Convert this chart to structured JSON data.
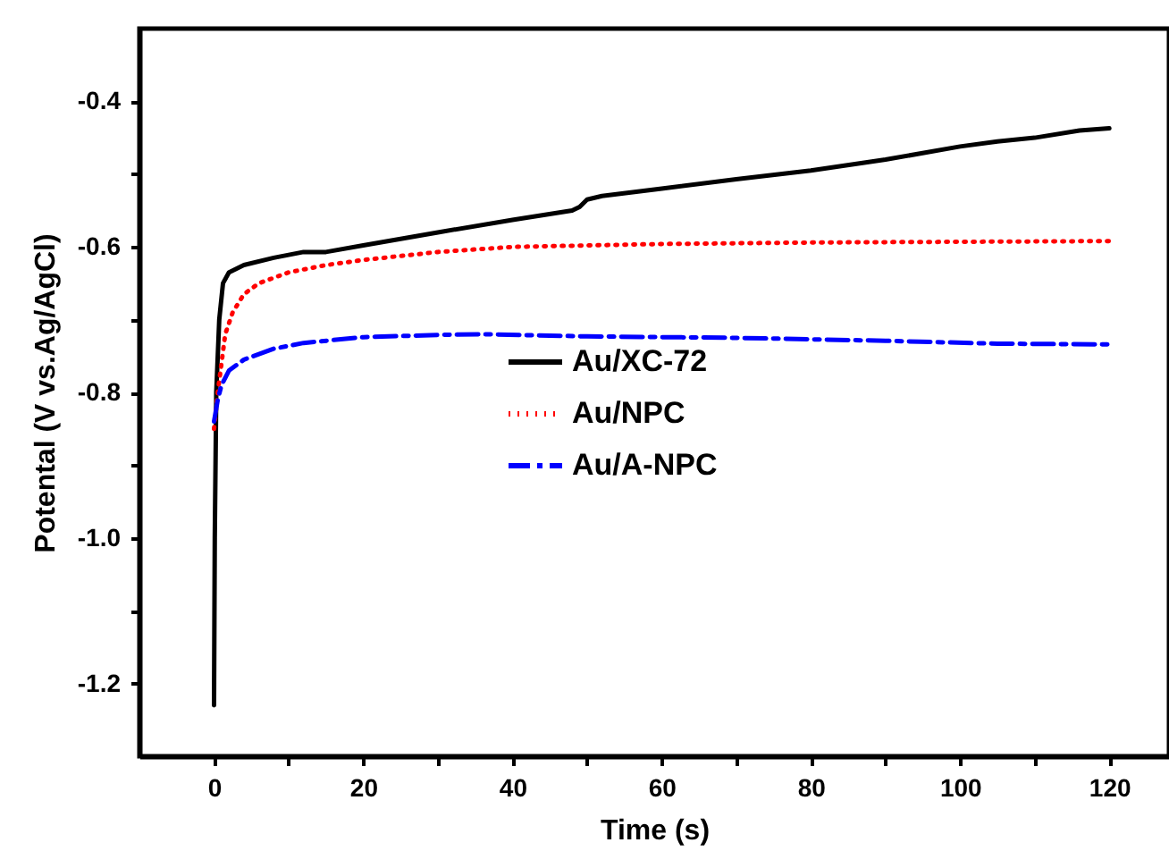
{
  "chart_data": {
    "type": "line",
    "xlabel": "Time (s)",
    "ylabel": "Potental (V vs.Ag/AgCl)",
    "xlim": [
      -10,
      128
    ],
    "ylim": [
      -1.3,
      -0.3
    ],
    "xticks": [
      0,
      {
        "value": 10,
        "label": null
      },
      20,
      {
        "value": 30,
        "label": null
      },
      40,
      {
        "value": 50,
        "label": null
      },
      60,
      {
        "value": 70,
        "label": null
      },
      80,
      {
        "value": 90,
        "label": null
      },
      100,
      {
        "value": 110,
        "label": null
      },
      120
    ],
    "yticks": [
      {
        "value": -1.2,
        "label": "-1.2"
      },
      {
        "value": -1.1,
        "label": null
      },
      {
        "value": -1.0,
        "label": "-1.0"
      },
      {
        "value": -0.9,
        "label": null
      },
      {
        "value": -0.8,
        "label": "-0.8"
      },
      {
        "value": -0.7,
        "label": null
      },
      {
        "value": -0.6,
        "label": "-0.6"
      },
      {
        "value": -0.5,
        "label": null
      },
      {
        "value": -0.4,
        "label": "-0.4"
      }
    ],
    "grid": false,
    "legend": "center",
    "marker": "none",
    "series": [
      {
        "name": "Au/XC-72",
        "color": "#000000",
        "line_style": "solid",
        "x": [
          0,
          0.1,
          0.3,
          0.7,
          1.2,
          2,
          4,
          8,
          12,
          15,
          20,
          30,
          40,
          48,
          49,
          50,
          52,
          60,
          70,
          80,
          90,
          100,
          105,
          110,
          116,
          120
        ],
        "values": [
          -1.23,
          -1.0,
          -0.8,
          -0.7,
          -0.65,
          -0.635,
          -0.625,
          -0.615,
          -0.607,
          -0.607,
          -0.598,
          -0.58,
          -0.563,
          -0.55,
          -0.545,
          -0.535,
          -0.53,
          -0.52,
          -0.507,
          -0.495,
          -0.48,
          -0.462,
          -0.455,
          -0.45,
          -0.44,
          -0.437
        ]
      },
      {
        "name": "Au/NPC",
        "color": "#ff0000",
        "line_style": "dotted",
        "x": [
          0,
          0.5,
          1,
          1.5,
          2.5,
          4,
          6,
          10,
          15,
          20,
          30,
          40,
          60,
          80,
          100,
          120
        ],
        "values": [
          -0.85,
          -0.8,
          -0.76,
          -0.72,
          -0.69,
          -0.665,
          -0.65,
          -0.635,
          -0.625,
          -0.618,
          -0.607,
          -0.6,
          -0.596,
          -0.594,
          -0.593,
          -0.592
        ]
      },
      {
        "name": "Au/A-NPC",
        "color": "#0000ff",
        "line_style": "dashed",
        "x": [
          0,
          0.5,
          1,
          2,
          4,
          8,
          12,
          20,
          30,
          36,
          50,
          70,
          90,
          105,
          120
        ],
        "values": [
          -0.84,
          -0.81,
          -0.79,
          -0.77,
          -0.755,
          -0.74,
          -0.732,
          -0.724,
          -0.721,
          -0.72,
          -0.723,
          -0.725,
          -0.729,
          -0.733,
          -0.734
        ]
      }
    ]
  }
}
